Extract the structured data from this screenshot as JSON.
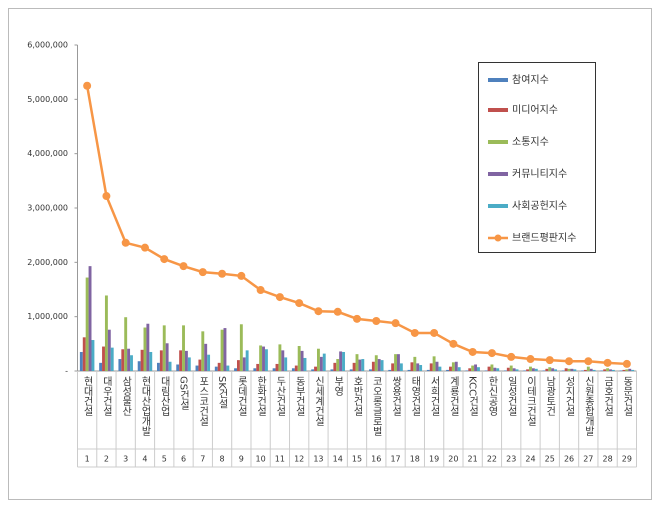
{
  "chart_data": {
    "type": "bar",
    "categories": [
      "현대건설",
      "대우건설",
      "삼성물산",
      "현대산업개발",
      "대림산업",
      "GS건설",
      "포스코건설",
      "SK건설",
      "롯데건설",
      "한화건설",
      "두산건설",
      "동부건설",
      "신세계건설",
      "부영",
      "호반건설",
      "코오롱글로벌",
      "쌍용건설",
      "태영건설",
      "서희건설",
      "계룡건설",
      "KCC건설",
      "한신공영",
      "일성건설",
      "이테크건설",
      "남광토건",
      "성지건설",
      "신원종합개발",
      "금호건설",
      "동문건설"
    ],
    "ranks": [
      1,
      2,
      3,
      4,
      5,
      6,
      7,
      8,
      9,
      10,
      11,
      12,
      13,
      14,
      15,
      16,
      17,
      18,
      19,
      20,
      21,
      22,
      23,
      24,
      25,
      26,
      27,
      28,
      29
    ],
    "series": [
      {
        "name": "참여지수",
        "color": "#4F81BD",
        "values": [
          350000,
          150000,
          220000,
          180000,
          150000,
          120000,
          100000,
          80000,
          50000,
          50000,
          50000,
          50000,
          30000,
          30000,
          30000,
          30000,
          20000,
          20000,
          20000,
          20000,
          10000,
          10000,
          10000,
          10000,
          10000,
          10000,
          10000,
          10000,
          10000
        ]
      },
      {
        "name": "미디어지수",
        "color": "#C0504D",
        "values": [
          620000,
          450000,
          400000,
          390000,
          380000,
          380000,
          210000,
          150000,
          200000,
          130000,
          130000,
          100000,
          80000,
          150000,
          150000,
          170000,
          140000,
          160000,
          140000,
          80000,
          50000,
          80000,
          60000,
          30000,
          40000,
          50000,
          20000,
          30000,
          20000
        ]
      },
      {
        "name": "소통지수",
        "color": "#9BBB59",
        "values": [
          1720000,
          1390000,
          990000,
          800000,
          840000,
          840000,
          730000,
          760000,
          860000,
          470000,
          490000,
          460000,
          410000,
          220000,
          310000,
          290000,
          310000,
          260000,
          270000,
          160000,
          100000,
          120000,
          100000,
          80000,
          70000,
          40000,
          80000,
          50000,
          30000
        ]
      },
      {
        "name": "커뮤니티지수",
        "color": "#8064A2",
        "values": [
          1930000,
          760000,
          410000,
          870000,
          510000,
          370000,
          500000,
          790000,
          250000,
          450000,
          380000,
          370000,
          260000,
          360000,
          210000,
          220000,
          310000,
          140000,
          170000,
          170000,
          120000,
          60000,
          50000,
          50000,
          50000,
          40000,
          40000,
          30000,
          40000
        ]
      },
      {
        "name": "사회공헌지수",
        "color": "#4BACC6",
        "values": [
          570000,
          430000,
          290000,
          350000,
          170000,
          250000,
          300000,
          100000,
          380000,
          400000,
          250000,
          240000,
          320000,
          350000,
          220000,
          200000,
          140000,
          110000,
          80000,
          70000,
          70000,
          50000,
          30000,
          40000,
          30000,
          30000,
          20000,
          20000,
          20000
        ]
      },
      {
        "name": "브랜드평판지수",
        "color": "#F79646",
        "type": "line",
        "values": [
          5250000,
          3220000,
          2360000,
          2270000,
          2060000,
          1930000,
          1820000,
          1790000,
          1750000,
          1490000,
          1360000,
          1250000,
          1100000,
          1090000,
          960000,
          920000,
          880000,
          700000,
          700000,
          500000,
          350000,
          330000,
          260000,
          220000,
          200000,
          180000,
          180000,
          150000,
          130000
        ]
      }
    ],
    "ylim": [
      0,
      6000000
    ],
    "yticks": [
      {
        "value": 0,
        "label": "-"
      },
      {
        "value": 1000000,
        "label": "1,000,000"
      },
      {
        "value": 2000000,
        "label": "2,000,000"
      },
      {
        "value": 3000000,
        "label": "3,000,000"
      },
      {
        "value": 4000000,
        "label": "4,000,000"
      },
      {
        "value": 5000000,
        "label": "5,000,000"
      },
      {
        "value": 6000000,
        "label": "6,000,000"
      }
    ],
    "legend": "upper right"
  }
}
